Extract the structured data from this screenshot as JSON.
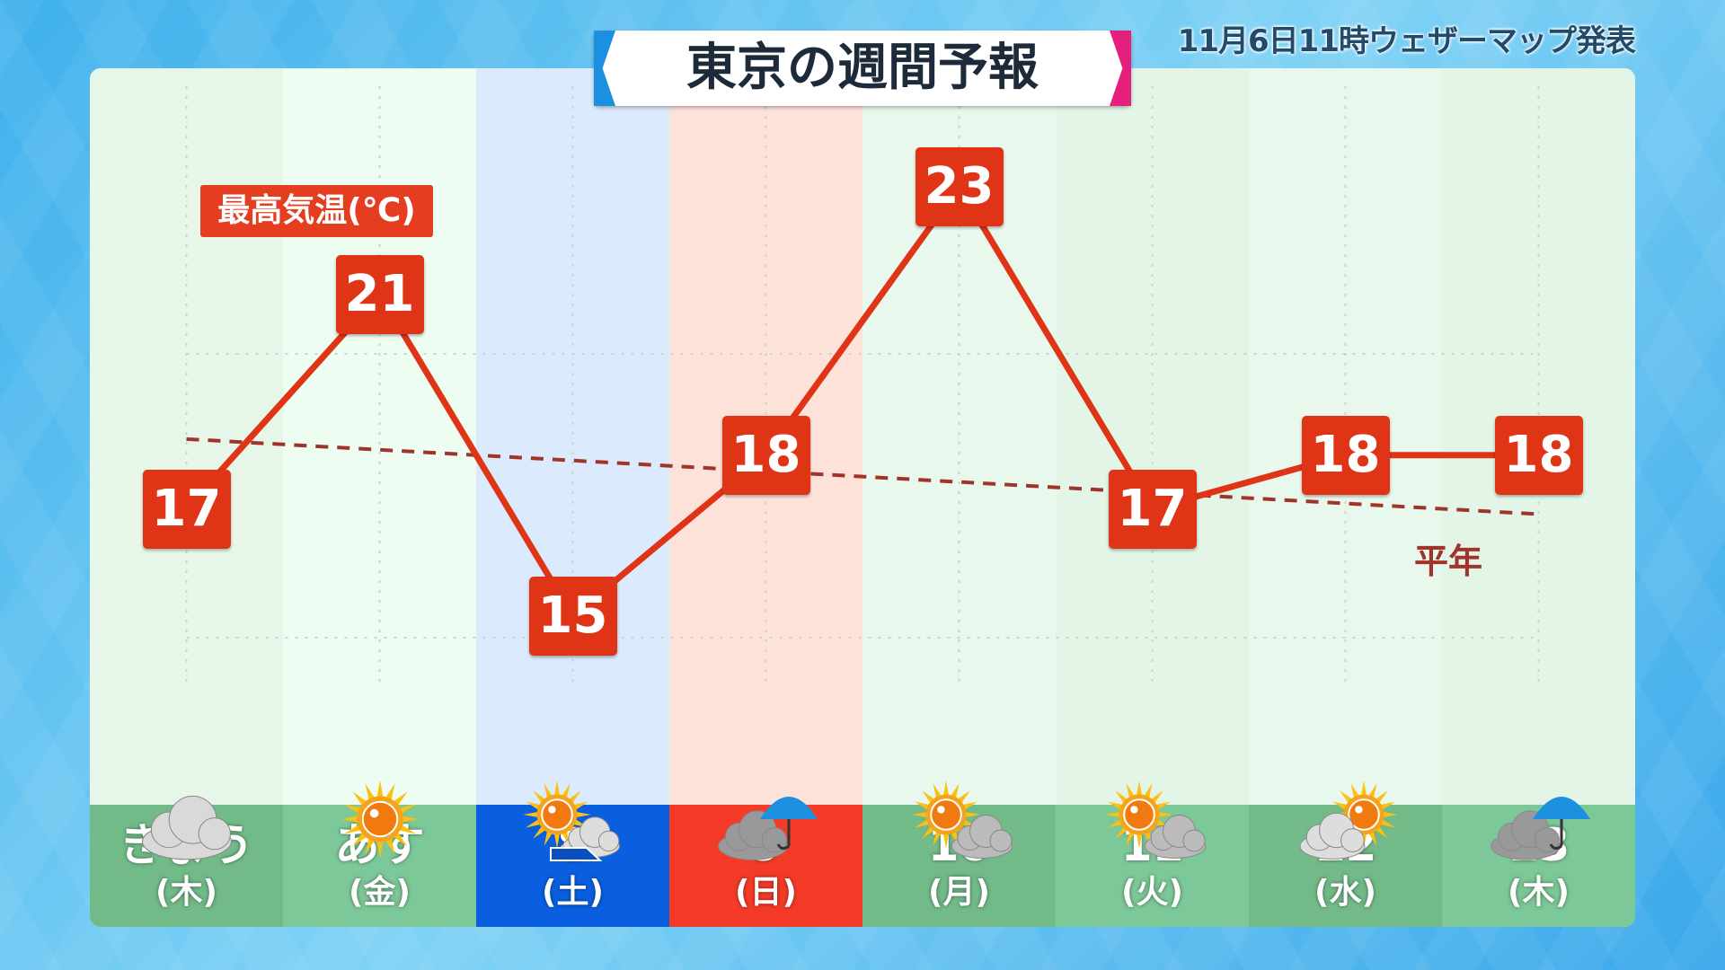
{
  "title": "東京の週間予報",
  "issued": "11月6日11時ウェザーマップ発表",
  "legend_label": "最高気温(℃)",
  "normal_label": "平年",
  "colors": {
    "line": "#df3416",
    "normal": "#a0342a",
    "saturday": "#0a5fe0",
    "sunday": "#f43b28",
    "weekday": "#76c08e"
  },
  "days": [
    {
      "date": "きょう",
      "weekday": "(木)",
      "high": 17,
      "weather": "cloudy",
      "type": "weekday"
    },
    {
      "date": "あす",
      "weekday": "(金)",
      "high": 21,
      "weather": "sunny",
      "type": "weekday"
    },
    {
      "date": "8",
      "weekday": "(土)",
      "high": 15,
      "weather": "sunny-then-cloudy",
      "type": "saturday"
    },
    {
      "date": "9",
      "weekday": "(日)",
      "high": 18,
      "weather": "cloudy-with-rain",
      "type": "sunday"
    },
    {
      "date": "10",
      "weekday": "(月)",
      "high": 23,
      "weather": "sunny-with-clouds",
      "type": "weekday"
    },
    {
      "date": "11",
      "weekday": "(火)",
      "high": 17,
      "weather": "sunny-with-clouds",
      "type": "weekday"
    },
    {
      "date": "12",
      "weekday": "(水)",
      "high": 18,
      "weather": "cloudy-with-sun",
      "type": "weekday"
    },
    {
      "date": "13",
      "weekday": "(木)",
      "high": 18,
      "weather": "cloudy-with-rain",
      "type": "weekday"
    }
  ],
  "chart_data": {
    "type": "line",
    "series": [
      {
        "name": "最高気温(℃)",
        "values": [
          17,
          21,
          15,
          18,
          23,
          17,
          18,
          18
        ]
      },
      {
        "name": "平年",
        "values_start_end": [
          18.3,
          16.9
        ]
      }
    ],
    "categories": [
      "きょう",
      "あす",
      "8",
      "9",
      "10",
      "11",
      "12",
      "13"
    ]
  }
}
